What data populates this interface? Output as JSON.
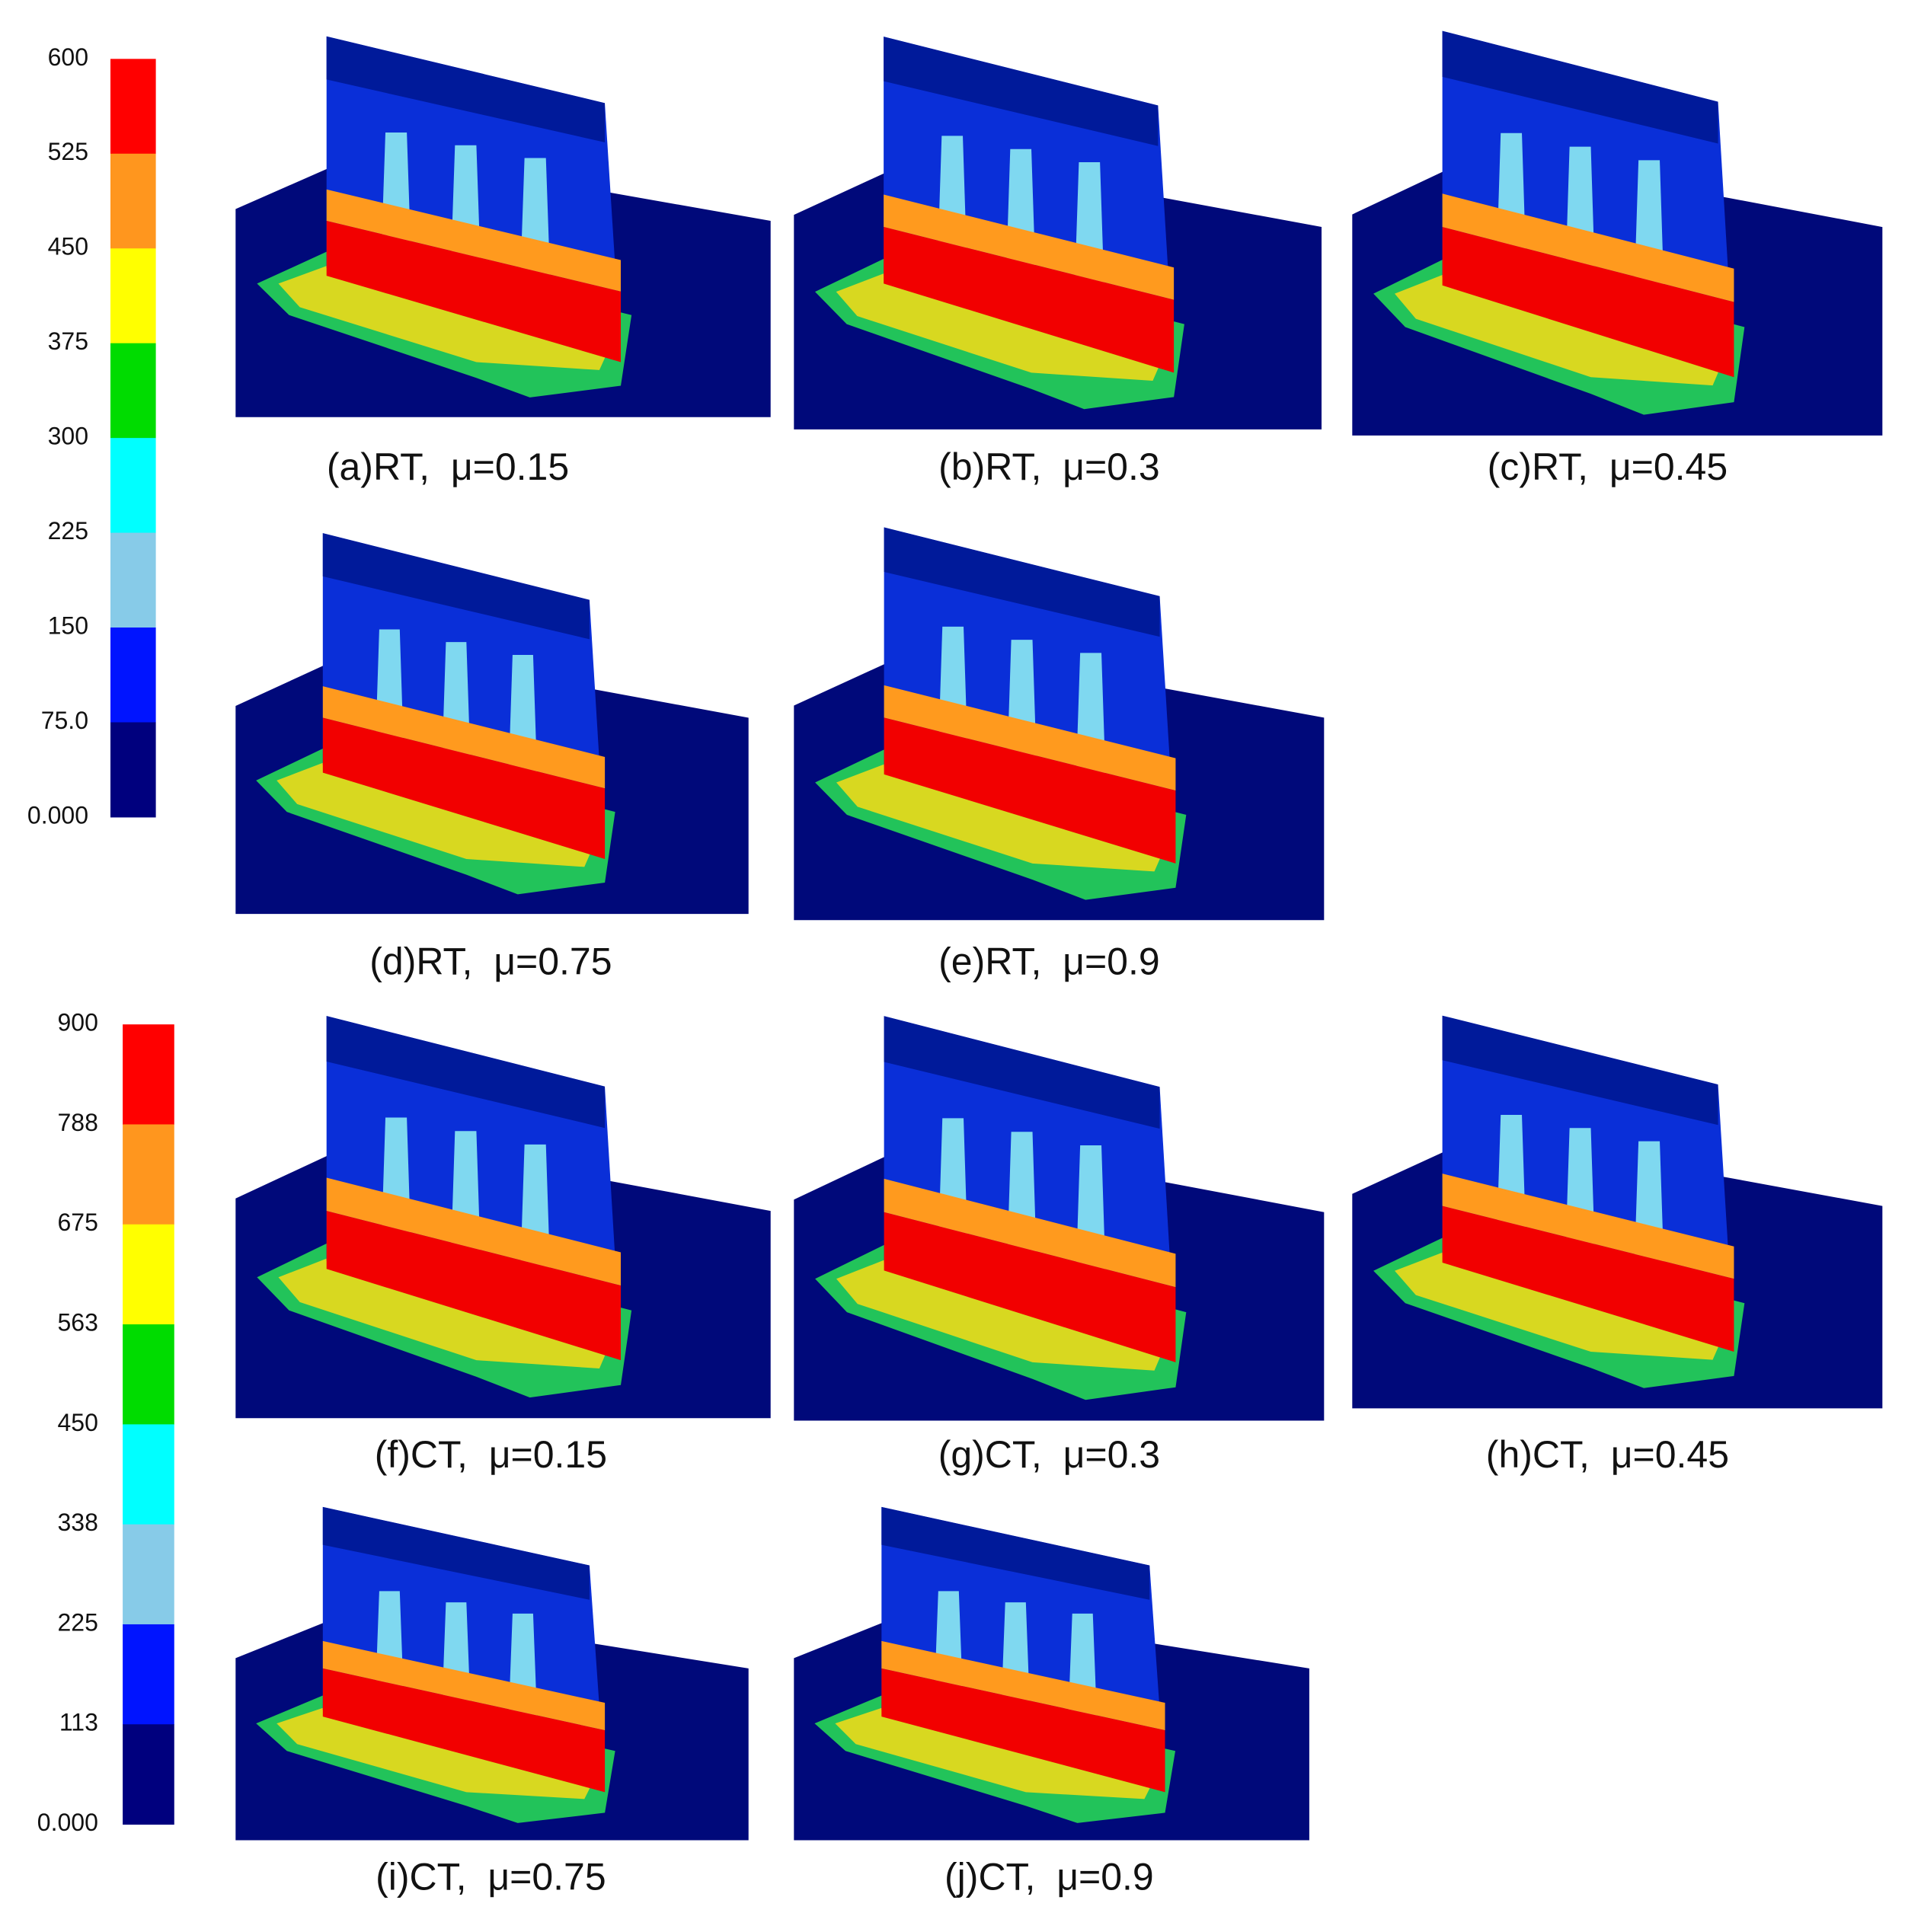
{
  "colorbars": [
    {
      "labels": [
        "600",
        "525",
        "450",
        "375",
        "300",
        "225",
        "150",
        "75.0",
        "0.000"
      ],
      "colors": [
        "#ff0000",
        "#ff961e",
        "#ffff00",
        "#00dc00",
        "#00ffff",
        "#87cbe8",
        "#0014ff",
        "#00007e"
      ]
    },
    {
      "labels": [
        "900",
        "788",
        "675",
        "563",
        "450",
        "338",
        "225",
        "113",
        "0.000"
      ],
      "colors": [
        "#ff0000",
        "#ff961e",
        "#ffff00",
        "#00dc00",
        "#00ffff",
        "#87cbe8",
        "#0014ff",
        "#00007e"
      ]
    }
  ],
  "panels": [
    {
      "caption": "(a)RT,  μ=0.15"
    },
    {
      "caption": "(b)RT,  μ=0.3"
    },
    {
      "caption": "(c)RT,  μ=0.45"
    },
    {
      "caption": "(d)RT,  μ=0.75"
    },
    {
      "caption": "(e)RT,  μ=0.9"
    },
    {
      "caption": "(f)CT,  μ=0.15"
    },
    {
      "caption": "(g)CT,  μ=0.3"
    },
    {
      "caption": "(h)CT,  μ=0.45"
    },
    {
      "caption": "(i)CT,  μ=0.75"
    },
    {
      "caption": "(j)CT,  μ=0.9"
    }
  ]
}
